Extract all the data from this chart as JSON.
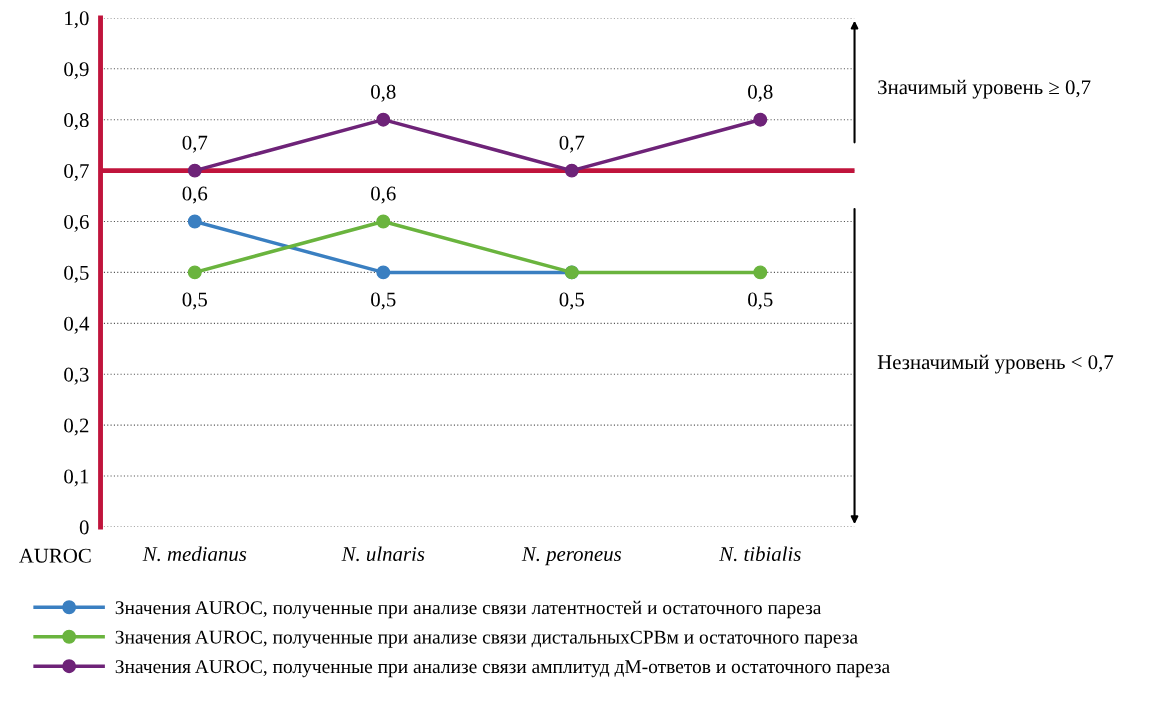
{
  "chart_data": {
    "type": "line",
    "categories": [
      "N. medianus",
      "N. ulnaris",
      "N. peroneus",
      "N. tibialis"
    ],
    "ylabel": "AUROC",
    "ylim": [
      0,
      1.0
    ],
    "yticks": [
      {
        "value": 0,
        "label": "0"
      },
      {
        "value": 0.1,
        "label": "0,1"
      },
      {
        "value": 0.2,
        "label": "0,2"
      },
      {
        "value": 0.3,
        "label": "0,3"
      },
      {
        "value": 0.4,
        "label": "0,4"
      },
      {
        "value": 0.5,
        "label": "0,5"
      },
      {
        "value": 0.6,
        "label": "0,6"
      },
      {
        "value": 0.7,
        "label": "0,7"
      },
      {
        "value": 0.8,
        "label": "0,8"
      },
      {
        "value": 0.9,
        "label": "0,9"
      },
      {
        "value": 1.0,
        "label": "1,0"
      }
    ],
    "grid": "y",
    "marker": "circle",
    "legend": "bottom",
    "series": [
      {
        "name": "Значения AUROC, полученные при анализе связи латентностей и остаточного пареза",
        "color": "#3a7fc1",
        "values": [
          0.6,
          0.5,
          0.5,
          null
        ],
        "value_labels": [
          "0,6",
          "0,5",
          "0,5",
          null
        ]
      },
      {
        "name": "Значения AUROC, полученные при анализе связи дистальныхСРВм и остаточного пареза",
        "color": "#6ab43e",
        "values": [
          0.5,
          0.6,
          0.5,
          0.5
        ],
        "value_labels": [
          "0,5",
          "0,6",
          null,
          "0,5"
        ]
      },
      {
        "name": "Значения AUROC, полученные при анализе связи амплитуд дМ-ответов и остаточного пареза",
        "color": "#6e2378",
        "values": [
          0.7,
          0.8,
          0.7,
          0.8
        ],
        "value_labels": [
          "0,7",
          "0,8",
          "0,7",
          "0,8"
        ]
      }
    ],
    "ref_lines": [
      {
        "axis": "y",
        "value": 0.7,
        "color": "#c0143c",
        "line_style": "solid"
      }
    ],
    "annotations": [
      "Значимый уровень ≥ 0,7",
      "Незначимый уровень < 0,7"
    ]
  }
}
